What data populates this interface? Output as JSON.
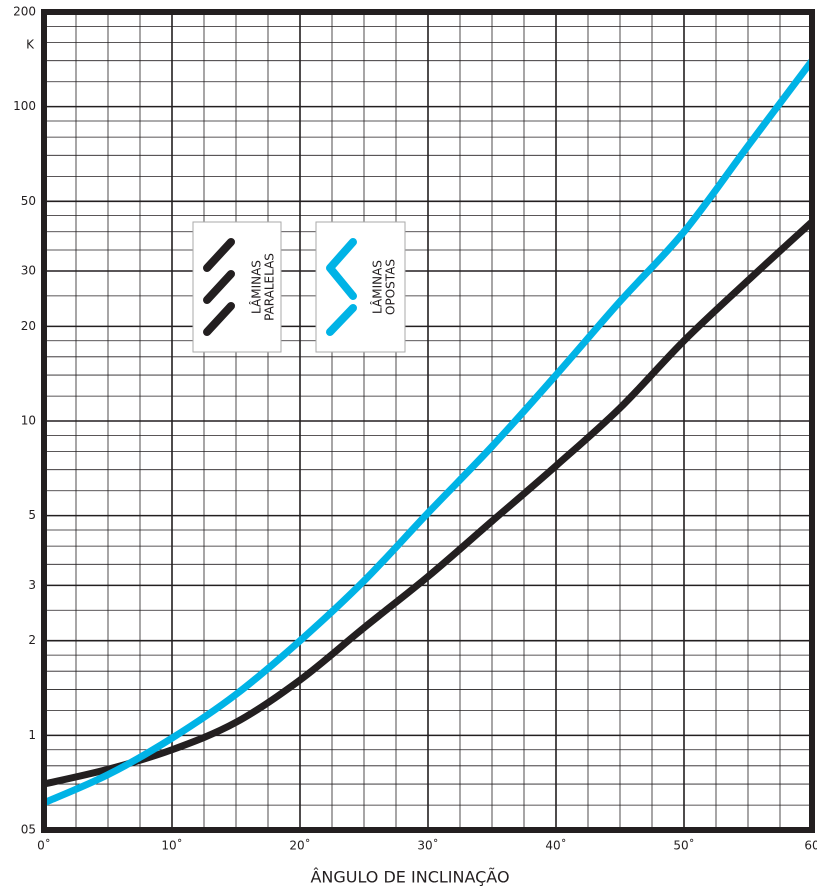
{
  "chart_data": {
    "type": "line",
    "y_unit_label": "K",
    "xlabel": "ÂNGULO DE INCLINAÇÃO",
    "x": [
      0,
      5,
      10,
      15,
      20,
      25,
      30,
      35,
      40,
      45,
      50,
      55,
      60
    ],
    "series": [
      {
        "name": "LÂMINAS PARALELAS",
        "color": "#231f20",
        "values": [
          0.7,
          0.78,
          0.9,
          1.1,
          1.5,
          2.2,
          3.2,
          4.8,
          7.2,
          11,
          18,
          28,
          43
        ]
      },
      {
        "name": "LÂMINAS OPOSTAS",
        "color": "#00b3e6",
        "values": [
          0.61,
          0.75,
          0.98,
          1.35,
          2.0,
          3.1,
          5.1,
          8.3,
          14,
          24,
          40,
          75,
          140
        ]
      }
    ],
    "xlim": [
      0,
      60
    ],
    "xticks": [
      {
        "value": 0,
        "label": "0˚"
      },
      {
        "value": 10,
        "label": "10˚"
      },
      {
        "value": 20,
        "label": "20˚"
      },
      {
        "value": 30,
        "label": "30˚"
      },
      {
        "value": 40,
        "label": "40˚"
      },
      {
        "value": 50,
        "label": "50˚"
      },
      60
    ],
    "ylim": [
      0.5,
      200
    ],
    "yscale": "log",
    "yticks": [
      {
        "value": 0.5,
        "label": "05"
      },
      1,
      2,
      3,
      5,
      10,
      20,
      30,
      50,
      100,
      200
    ],
    "minor_xticks": [
      2.5,
      5,
      7.5,
      12.5,
      15,
      17.5,
      22.5,
      25,
      27.5,
      32.5,
      35,
      37.5,
      42.5,
      45,
      47.5,
      52.5,
      55,
      57.5
    ],
    "minor_yticks": [
      0.6,
      0.7,
      0.8,
      0.9,
      1.2,
      1.4,
      1.6,
      1.8,
      2.5,
      3.5,
      4,
      4.5,
      6,
      7,
      8,
      9,
      12,
      14,
      16,
      18,
      25,
      35,
      40,
      45,
      60,
      70,
      80,
      90,
      120,
      140,
      160,
      180
    ],
    "grid": true
  }
}
